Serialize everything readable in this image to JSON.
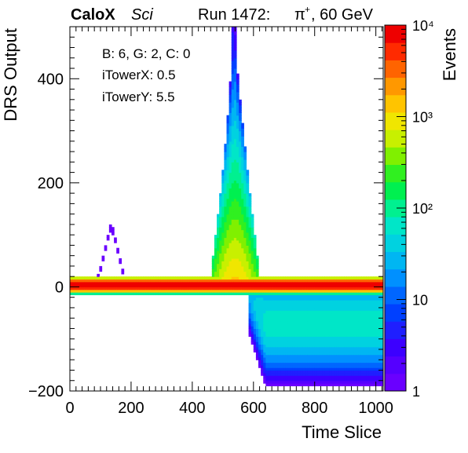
{
  "header": {
    "experiment": "CaloX",
    "detector": "Sci",
    "run_label": "Run 1472:",
    "beam_particle": "π",
    "beam_charge": "+",
    "beam_energy": ", 60 GeV"
  },
  "stats_box": {
    "lines": [
      "B: 6, G: 2, C: 0",
      "iTowerX: 0.5",
      "iTowerY: 5.5"
    ]
  },
  "chart_data": {
    "type": "heatmap",
    "title": "",
    "xlabel": "Time Slice",
    "ylabel": "DRS Output",
    "zlabel": "Events",
    "xlim": [
      0,
      1024
    ],
    "ylim": [
      -200,
      500
    ],
    "zlim": [
      1,
      10000
    ],
    "z_log_scale": true,
    "x_ticks": [
      0,
      200,
      400,
      600,
      800,
      1000
    ],
    "y_ticks": [
      -200,
      0,
      200,
      400
    ],
    "z_tick_labels": [
      "1",
      "10",
      "10²",
      "10³",
      "10⁴"
    ],
    "z_tick_values": [
      1,
      10,
      100,
      1000,
      10000
    ],
    "colormap": [
      "#6a00ff",
      "#5500ff",
      "#3c00ff",
      "#1f1fff",
      "#0040ff",
      "#0066ff",
      "#0090ff",
      "#00b6f2",
      "#00d2e0",
      "#00e6c8",
      "#00f090",
      "#00f050",
      "#30f020",
      "#80f000",
      "#c8f000",
      "#f0e600",
      "#ffc400",
      "#ff9800",
      "#ff6400",
      "#ff2a00",
      "#ee0000"
    ],
    "features": [
      {
        "name": "baseline band",
        "x": [
          0,
          1024
        ],
        "y": [
          -14,
          22
        ],
        "peak_events": 10000
      },
      {
        "name": "signal pulse",
        "x_peak": 530,
        "y_peak": 500,
        "x_range": [
          440,
          600
        ],
        "peak_events": 1000
      },
      {
        "name": "undershoot tail",
        "x": [
          580,
          1024
        ],
        "y": [
          -180,
          -10
        ],
        "peak_events": 30
      },
      {
        "name": "pre-pulse bump",
        "x_peak": 135,
        "y_peak": 120,
        "x_range": [
          75,
          175
        ],
        "peak_events": 1
      }
    ]
  }
}
